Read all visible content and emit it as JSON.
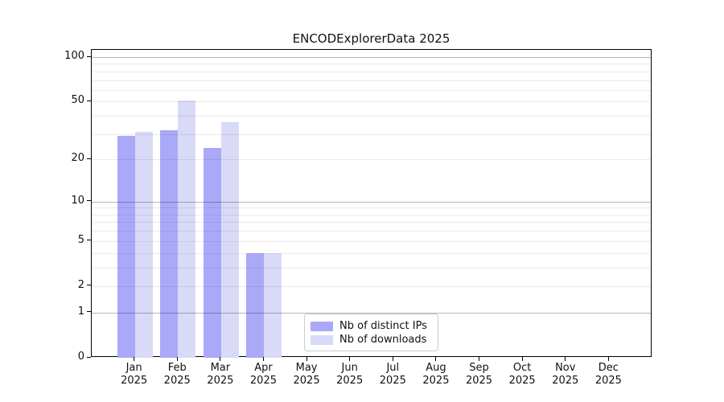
{
  "chart_data": {
    "type": "bar",
    "title": "ENCODExplorerData 2025",
    "categories": [
      "Jan 2025",
      "Feb 2025",
      "Mar 2025",
      "Apr 2025",
      "May 2025",
      "Jun 2025",
      "Jul 2025",
      "Aug 2025",
      "Sep 2025",
      "Oct 2025",
      "Nov 2025",
      "Dec 2025"
    ],
    "series": [
      {
        "name": "Nb of distinct IPs",
        "color": "#a9a9f8",
        "values": [
          29,
          32,
          24,
          4,
          0,
          0,
          0,
          0,
          0,
          0,
          0,
          0
        ]
      },
      {
        "name": "Nb of downloads",
        "color": "#d9d9f8",
        "values": [
          31,
          51,
          36,
          4,
          0,
          0,
          0,
          0,
          0,
          0,
          0,
          0
        ]
      }
    ],
    "yscale": "log1p",
    "ylim": [
      0,
      112
    ],
    "ytick_labels": [
      0,
      1,
      2,
      5,
      10,
      20,
      50,
      100
    ],
    "grid_major": [
      1,
      10,
      100
    ],
    "grid_minor": [
      2,
      3,
      4,
      5,
      6,
      7,
      8,
      9,
      20,
      30,
      40,
      50,
      60,
      70,
      80,
      90
    ],
    "grid": "horizontal",
    "legend_position": "lower-center",
    "xlabel": "",
    "ylabel": ""
  },
  "colors": {
    "axis": "#000000",
    "grid_major": "#b8b8b8",
    "grid_minor": "#ececec",
    "background": "#ffffff",
    "bar_ips": "#a9a9f8",
    "bar_downloads": "#d9d9f8"
  }
}
